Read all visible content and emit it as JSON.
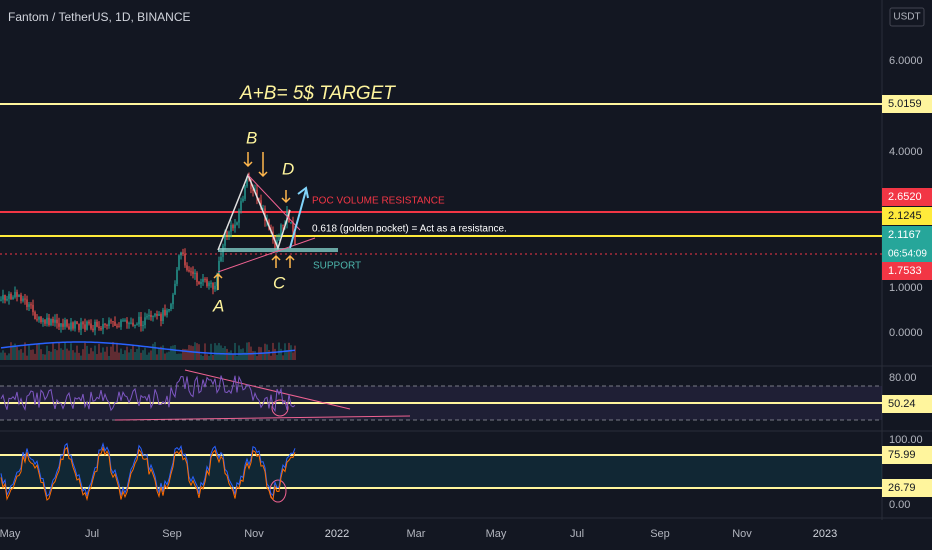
{
  "header": {
    "title": "Fantom / TetherUS, 1D, BINANCE",
    "currency": "USDT"
  },
  "price_axis": {
    "ticks": [
      "6.0000",
      "4.0000",
      "1.0000",
      "0.0000"
    ],
    "tags": [
      {
        "label": "5.0159",
        "color": "#fff59d"
      },
      {
        "label": "2.6520",
        "color": "#f23645"
      },
      {
        "label": "2.1245",
        "color": "#ffeb3b"
      },
      {
        "label": "2.1167",
        "color": "#26a69a"
      },
      {
        "label": "1.7533",
        "color": "#f23645"
      }
    ],
    "countdown": "06:54:09"
  },
  "annotations": [
    "A+B= 5$ TARGET",
    "B",
    "D",
    "A",
    "C",
    "POC VOLUME RESISTANCE",
    "0.618 (golden pocket) = Act as a resistance.",
    "SUPPORT"
  ],
  "rsi": {
    "ticks": [
      "80.00"
    ],
    "tag": "50.24"
  },
  "stoch": {
    "ticks": [
      "100.00",
      "0.00"
    ],
    "tags": [
      "75.99",
      "26.79"
    ]
  },
  "time_axis": [
    "May",
    "Jul",
    "Sep",
    "Nov",
    "2022",
    "Mar",
    "May",
    "Jul",
    "Sep",
    "Nov",
    "2023"
  ]
}
